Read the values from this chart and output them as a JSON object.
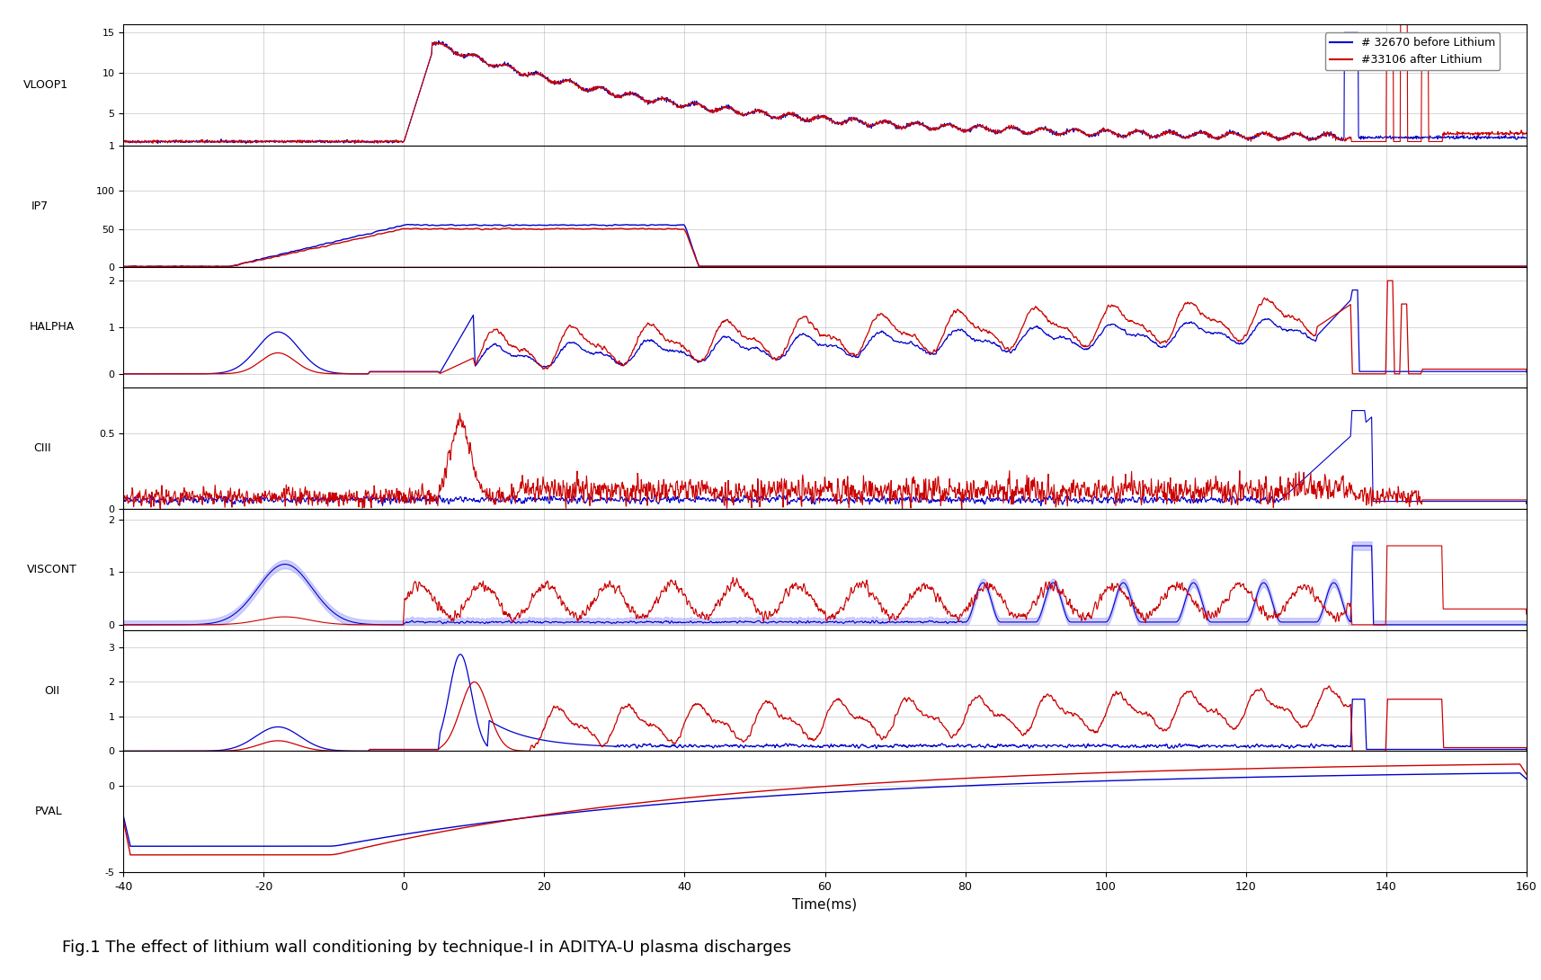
{
  "title": "Fig.1 The effect of lithium wall conditioning by technique-I in ADITYA-U plasma discharges",
  "xlabel": "Time(ms)",
  "x_range": [
    -40,
    160
  ],
  "x_ticks": [
    -40,
    -20,
    0,
    20,
    40,
    60,
    80,
    100,
    120,
    140,
    160
  ],
  "legend_blue": "# 32670 before Lithium",
  "legend_red": "#33106 after Lithium",
  "blue_color": "#0000CC",
  "red_color": "#CC0000",
  "light_blue": "#AAAAFF",
  "light_red": "#FFAAAA",
  "panels": [
    {
      "ylabel": "VLOOP1",
      "yticks": [
        5,
        10,
        15
      ],
      "ylim": [
        1,
        16
      ]
    },
    {
      "ylabel": "IP7",
      "yticks": [
        50,
        100
      ],
      "ylim": [
        0,
        160
      ]
    },
    {
      "ylabel": "HALPHA",
      "yticks": [
        1,
        2
      ],
      "ylim": [
        -0.3,
        2.3
      ]
    },
    {
      "ylabel": "CIII",
      "yticks": [
        0.5
      ],
      "ylim": [
        0,
        0.8
      ]
    },
    {
      "ylabel": "VISCONT",
      "yticks": [
        1,
        2
      ],
      "ylim": [
        -0.1,
        2.2
      ]
    },
    {
      "ylabel": "OII",
      "yticks": [
        1,
        2,
        3
      ],
      "ylim": [
        0,
        3.5
      ]
    },
    {
      "ylabel": "PVAL",
      "yticks": [
        0
      ],
      "ylim": [
        -5,
        2
      ]
    }
  ]
}
